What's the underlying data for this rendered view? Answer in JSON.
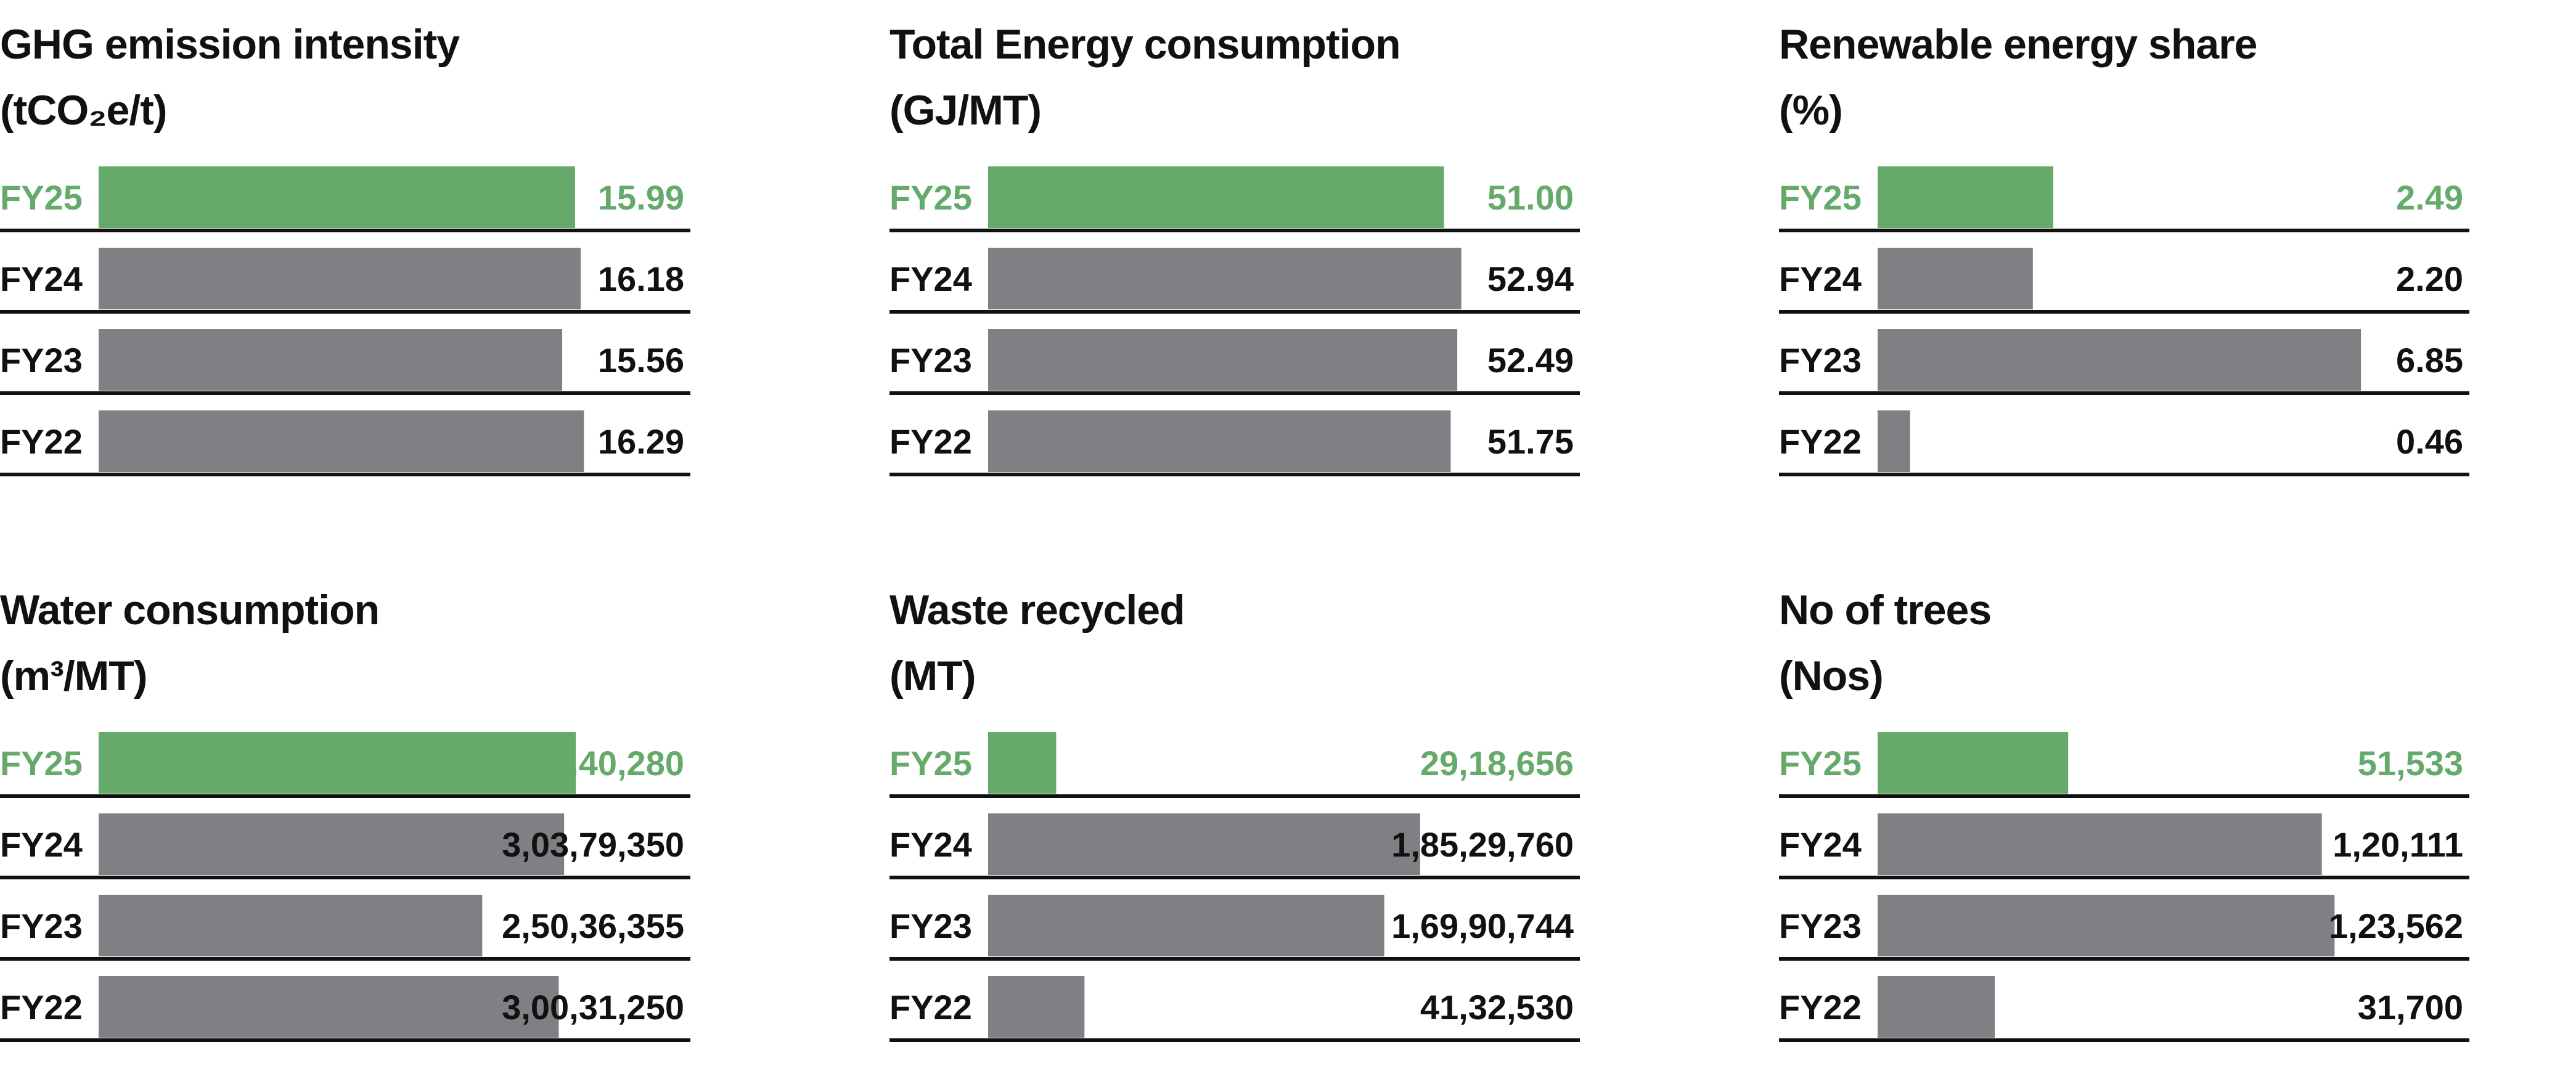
{
  "colors": {
    "current_year": "#65aa6b",
    "previous_years": "#808084",
    "baseline": "#111111",
    "text": "#111111"
  },
  "panels": [
    {
      "title": "GHG emission intensity",
      "unit": "(tCO₂e/t)"
    },
    {
      "title": "Total Energy consumption",
      "unit": "(GJ/MT)"
    },
    {
      "title": "Renewable energy share",
      "unit": "(%)"
    },
    {
      "title": "Water consumption",
      "unit": "(m³/MT)"
    },
    {
      "title": "Waste recycled",
      "unit": "(MT)"
    },
    {
      "title": "No of trees",
      "unit": "(Nos)"
    }
  ],
  "chart_data": [
    {
      "type": "bar",
      "orientation": "horizontal",
      "title": "GHG emission intensity",
      "ylabel": "(tCO₂e/t)",
      "categories": [
        "FY25",
        "FY24",
        "FY23",
        "FY22"
      ],
      "values": [
        15.99,
        16.18,
        15.56,
        16.29
      ],
      "value_labels": [
        "15.99",
        "16.18",
        "15.56",
        "16.29"
      ],
      "highlight_index": 0,
      "xlim": [
        0,
        18
      ]
    },
    {
      "type": "bar",
      "orientation": "horizontal",
      "title": "Total Energy consumption",
      "ylabel": "(GJ/MT)",
      "categories": [
        "FY25",
        "FY24",
        "FY23",
        "FY22"
      ],
      "values": [
        51.0,
        52.94,
        52.49,
        51.75
      ],
      "value_labels": [
        "51.00",
        "52.94",
        "52.49",
        "51.75"
      ],
      "highlight_index": 0,
      "xlim": [
        0,
        60
      ]
    },
    {
      "type": "bar",
      "orientation": "horizontal",
      "title": "Renewable energy share",
      "ylabel": "(%)",
      "categories": [
        "FY25",
        "FY24",
        "FY23",
        "FY22"
      ],
      "values": [
        2.49,
        2.2,
        6.85,
        0.46
      ],
      "value_labels": [
        "2.49",
        "2.20",
        "6.85",
        "0.46"
      ],
      "highlight_index": 0,
      "xlim": [
        0,
        7.6
      ]
    },
    {
      "type": "bar",
      "orientation": "horizontal",
      "title": "Water consumption",
      "ylabel": "(m³/MT)",
      "categories": [
        "FY25",
        "FY24",
        "FY23",
        "FY22"
      ],
      "values": [
        31140280,
        30379350,
        25036355,
        30031250
      ],
      "value_labels": [
        "3,11,40,280",
        "3,03,79,350",
        "2,50,36,355",
        "3,00,31,250"
      ],
      "highlight_index": 0,
      "xlim": [
        0,
        35000000
      ]
    },
    {
      "type": "bar",
      "orientation": "horizontal",
      "title": "Waste recycled",
      "ylabel": "(MT)",
      "categories": [
        "FY25",
        "FY24",
        "FY23",
        "FY22"
      ],
      "values": [
        2918656,
        18529760,
        16990744,
        4132530
      ],
      "value_labels": [
        "29,18,656",
        "1,85,29,760",
        "1,69,90,744",
        "41,32,530"
      ],
      "highlight_index": 0,
      "xlim": [
        0,
        23000000
      ]
    },
    {
      "type": "bar",
      "orientation": "horizontal",
      "title": "No of trees",
      "ylabel": "(Nos)",
      "categories": [
        "FY25",
        "FY24",
        "FY23",
        "FY22"
      ],
      "values": [
        51533,
        120111,
        123562,
        31700
      ],
      "value_labels": [
        "51,533",
        "1,20,111",
        "1,23,562",
        "31,700"
      ],
      "highlight_index": 0,
      "xlim": [
        0,
        145000
      ]
    }
  ]
}
